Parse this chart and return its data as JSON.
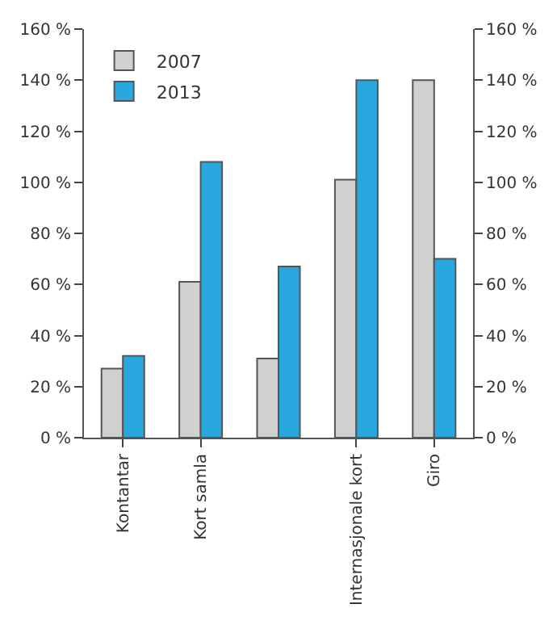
{
  "chart_data": {
    "type": "bar",
    "categories": [
      "Kontantar",
      "Kort samla",
      null,
      "Internasjonale kort",
      "Giro"
    ],
    "series": [
      {
        "name": "2007",
        "color": "#d0d0d0",
        "values": [
          27,
          61,
          31,
          101,
          140
        ]
      },
      {
        "name": "2013",
        "color": "#29a8e0",
        "values": [
          32,
          108,
          67,
          140,
          70
        ]
      }
    ],
    "ylim": [
      0,
      160
    ],
    "yticks": [
      {
        "value": 0,
        "label": "0 %"
      },
      {
        "value": 20,
        "label": "20 %"
      },
      {
        "value": 40,
        "label": "40 %"
      },
      {
        "value": 60,
        "label": "60 %"
      },
      {
        "value": 80,
        "label": "80 %"
      },
      {
        "value": 100,
        "label": "100 %"
      },
      {
        "value": 120,
        "label": "120 %"
      },
      {
        "value": 140,
        "label": "140 %"
      },
      {
        "value": 160,
        "label": "160 %"
      }
    ],
    "y2lim": [
      0,
      160
    ],
    "y2ticks": [
      {
        "value": 0,
        "label": "0 %"
      },
      {
        "value": 20,
        "label": "20 %"
      },
      {
        "value": 40,
        "label": "40 %"
      },
      {
        "value": 60,
        "label": "60 %"
      },
      {
        "value": 80,
        "label": "80 %"
      },
      {
        "value": 100,
        "label": "100 %"
      },
      {
        "value": 120,
        "label": "120 %"
      },
      {
        "value": 140,
        "label": "140 %"
      },
      {
        "value": 160,
        "label": "160 %"
      }
    ],
    "legend": "top left"
  }
}
